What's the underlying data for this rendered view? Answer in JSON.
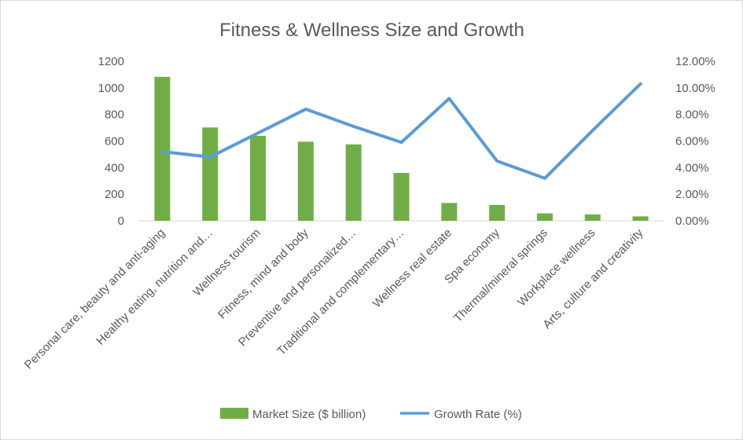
{
  "chart_data": {
    "type": "bar",
    "title": "Fitness & Wellness Size and Growth",
    "categories": [
      "Personal care, beauty and anti-aging",
      "Healthy eating, nutrition and…",
      "Wellness tourism",
      "Fitness, mind and body",
      "Preventive and personalized…",
      "Traditional and complementary…",
      "Wellness real estate",
      "Spa economy",
      "Thermal/mineral springs",
      "Workplace wellness",
      "Arts, culture and creativity"
    ],
    "series": [
      {
        "name": "Market Size ($ billion)",
        "type": "bar",
        "axis": "left",
        "color": "#70ad47",
        "values": [
          1083,
          702,
          639,
          595,
          575,
          360,
          134,
          119,
          56,
          48,
          33
        ]
      },
      {
        "name": "Growth  Rate (%)",
        "type": "line",
        "axis": "right",
        "color": "#5b9bd5",
        "values": [
          5.2,
          4.8,
          6.6,
          8.4,
          7.1,
          5.9,
          9.2,
          4.5,
          3.2,
          6.8,
          10.3
        ]
      }
    ],
    "y_left": {
      "min": 0,
      "max": 1200,
      "ticks": [
        "0",
        "200",
        "400",
        "600",
        "800",
        "1000",
        "1200"
      ]
    },
    "y_right": {
      "min": 0,
      "max": 12,
      "ticks": [
        "0.00%",
        "2.00%",
        "4.00%",
        "6.00%",
        "8.00%",
        "10.00%",
        "12.00%"
      ]
    },
    "grid": false,
    "legend": "bottom"
  }
}
